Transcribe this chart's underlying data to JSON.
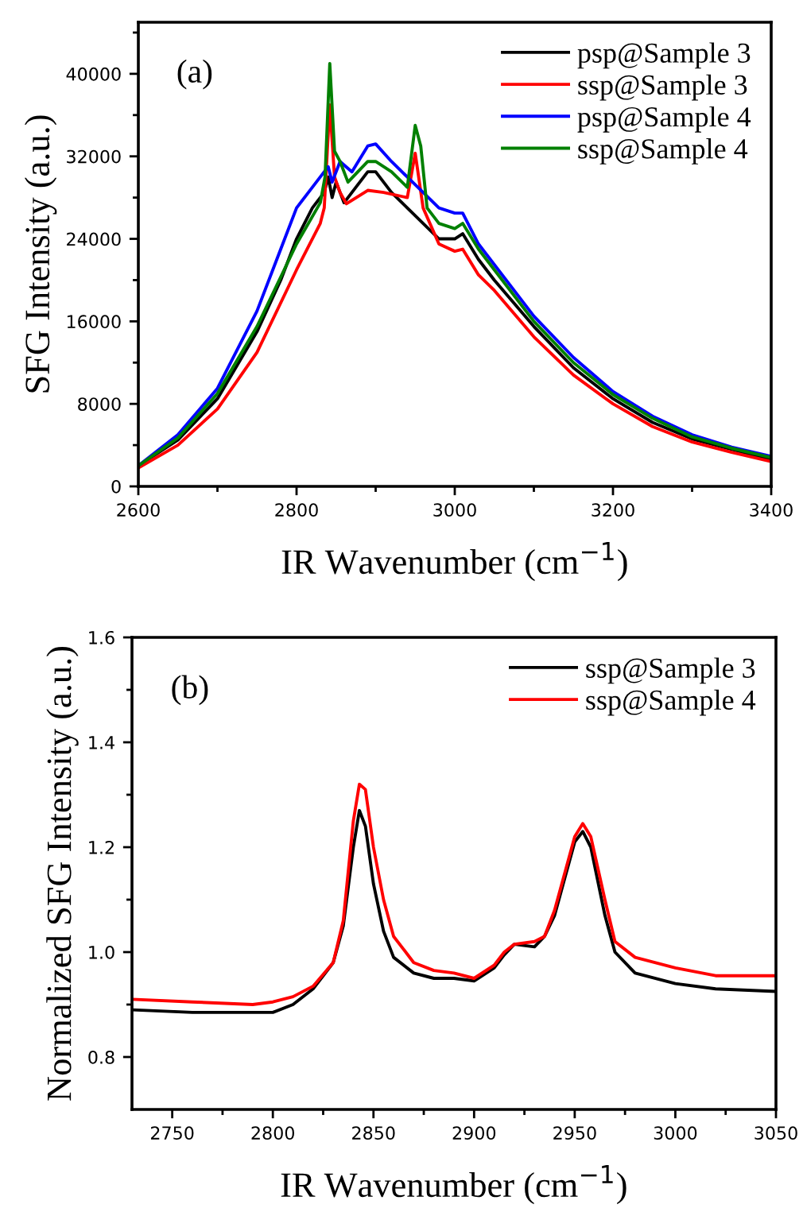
{
  "chart_data": [
    {
      "type": "line",
      "xlabel": "IR Wavenumber (cm$^{−1}$)",
      "ylabel": "SFG Intensity (a.u.)",
      "annotations": [
        "(a)"
      ],
      "legend": "top right",
      "line_style": "solid",
      "xlim": [
        2600,
        3400
      ],
      "xticks": [
        2600,
        {
          "value": 2700,
          "label": null
        },
        2800,
        {
          "value": 2900,
          "label": null
        },
        3000,
        {
          "value": 3100,
          "label": null
        },
        3200,
        {
          "value": 3300,
          "label": null
        },
        3400
      ],
      "ylim": [
        0,
        45000
      ],
      "yticks": [
        0,
        {
          "value": 4000,
          "label": null
        },
        8000,
        {
          "value": 12000,
          "label": null
        },
        16000,
        {
          "value": 20000,
          "label": null
        },
        24000,
        {
          "value": 28000,
          "label": null
        },
        32000,
        {
          "value": 36000,
          "label": null
        },
        40000,
        {
          "value": 44000,
          "label": null
        }
      ],
      "series": [
        {
          "name": "psp@Sample 3",
          "color": "#000000",
          "x": [
            2600,
            2650,
            2700,
            2750,
            2780,
            2800,
            2820,
            2835,
            2840,
            2845,
            2850,
            2860,
            2875,
            2890,
            2900,
            2920,
            2940,
            2960,
            2980,
            3000,
            3010,
            3030,
            3050,
            3100,
            3150,
            3200,
            3250,
            3300,
            3350,
            3400
          ],
          "values": [
            2000,
            4500,
            8500,
            15000,
            20000,
            24000,
            27000,
            28500,
            30000,
            28000,
            29500,
            27500,
            29000,
            30500,
            30500,
            28500,
            27000,
            25500,
            24000,
            24000,
            24500,
            22000,
            20000,
            15500,
            11500,
            8500,
            6200,
            4600,
            3600,
            2600
          ]
        },
        {
          "name": "ssp@Sample 3",
          "color": "#ff0000",
          "x": [
            2600,
            2650,
            2700,
            2750,
            2800,
            2830,
            2835,
            2842,
            2848,
            2855,
            2863,
            2890,
            2910,
            2940,
            2950,
            2960,
            2980,
            3000,
            3010,
            3030,
            3050,
            3100,
            3150,
            3200,
            3250,
            3300,
            3350,
            3400
          ],
          "values": [
            1800,
            4000,
            7500,
            13000,
            21000,
            25500,
            27000,
            37000,
            30000,
            28500,
            27400,
            28700,
            28500,
            28000,
            32300,
            27000,
            23500,
            22800,
            23000,
            20500,
            19000,
            14500,
            10800,
            8000,
            5800,
            4300,
            3300,
            2400
          ]
        },
        {
          "name": "psp@Sample 4",
          "color": "#0000ff",
          "x": [
            2600,
            2650,
            2700,
            2750,
            2780,
            2800,
            2820,
            2840,
            2845,
            2855,
            2870,
            2890,
            2900,
            2920,
            2940,
            2960,
            2980,
            3000,
            3010,
            3030,
            3050,
            3100,
            3150,
            3200,
            3250,
            3300,
            3350,
            3400
          ],
          "values": [
            2000,
            5000,
            9500,
            17000,
            23000,
            27000,
            29000,
            31000,
            29500,
            31500,
            30500,
            33000,
            33200,
            31500,
            30000,
            28500,
            27000,
            26500,
            26500,
            23500,
            21500,
            16500,
            12500,
            9200,
            6800,
            5000,
            3800,
            2900
          ]
        },
        {
          "name": "ssp@Sample 4",
          "color": "#008000",
          "x": [
            2600,
            2650,
            2700,
            2750,
            2800,
            2830,
            2836,
            2842,
            2848,
            2855,
            2865,
            2890,
            2900,
            2920,
            2940,
            2950,
            2957,
            2965,
            2980,
            3000,
            3010,
            3030,
            3050,
            3100,
            3150,
            3200,
            3250,
            3300,
            3350,
            3400
          ],
          "values": [
            2000,
            4700,
            9000,
            15500,
            23500,
            27500,
            30000,
            41000,
            32500,
            31500,
            29500,
            31500,
            31500,
            30500,
            29000,
            35000,
            33000,
            27000,
            25500,
            25000,
            25500,
            23000,
            21000,
            16000,
            12000,
            8900,
            6600,
            4800,
            3700,
            2800
          ]
        }
      ]
    },
    {
      "type": "line",
      "xlabel": "IR Wavenumber (cm$^{−1}$)",
      "ylabel": "Normalized SFG Intensity (a.u.)",
      "annotations": [
        "(b)"
      ],
      "legend": "top right",
      "line_style": "solid",
      "xlim": [
        2730,
        3050
      ],
      "xticks": [
        2750,
        {
          "value": 2775,
          "label": null
        },
        2800,
        {
          "value": 2825,
          "label": null
        },
        2850,
        {
          "value": 2875,
          "label": null
        },
        2900,
        {
          "value": 2925,
          "label": null
        },
        2950,
        {
          "value": 2975,
          "label": null
        },
        3000,
        {
          "value": 3025,
          "label": null
        },
        3050
      ],
      "ylim": [
        0.7,
        1.6
      ],
      "yticks": [
        0.8,
        {
          "value": 0.9,
          "label": null
        },
        {
          "value": 1.0,
          "label": "1.0"
        },
        {
          "value": 1.1,
          "label": null
        },
        1.2,
        {
          "value": 1.3,
          "label": null
        },
        1.4,
        {
          "value": 1.5,
          "label": null
        },
        1.6
      ],
      "series": [
        {
          "name": "ssp@Sample 3",
          "color": "#000000",
          "x": [
            2730,
            2760,
            2790,
            2800,
            2810,
            2820,
            2830,
            2835,
            2840,
            2843,
            2846,
            2850,
            2855,
            2860,
            2870,
            2880,
            2890,
            2900,
            2910,
            2915,
            2920,
            2930,
            2935,
            2940,
            2945,
            2950,
            2954,
            2958,
            2965,
            2970,
            2980,
            3000,
            3020,
            3050
          ],
          "values": [
            0.89,
            0.885,
            0.885,
            0.885,
            0.9,
            0.93,
            0.98,
            1.05,
            1.2,
            1.27,
            1.24,
            1.13,
            1.04,
            0.99,
            0.96,
            0.95,
            0.95,
            0.945,
            0.97,
            0.995,
            1.015,
            1.01,
            1.03,
            1.07,
            1.14,
            1.21,
            1.23,
            1.2,
            1.07,
            1.0,
            0.96,
            0.94,
            0.93,
            0.925
          ]
        },
        {
          "name": "ssp@Sample 4",
          "color": "#ff0000",
          "x": [
            2730,
            2760,
            2790,
            2800,
            2810,
            2820,
            2830,
            2835,
            2840,
            2843,
            2846,
            2850,
            2855,
            2860,
            2870,
            2880,
            2890,
            2900,
            2910,
            2915,
            2920,
            2930,
            2935,
            2940,
            2945,
            2950,
            2954,
            2958,
            2965,
            2970,
            2980,
            3000,
            3020,
            3050
          ],
          "values": [
            0.91,
            0.905,
            0.9,
            0.905,
            0.915,
            0.935,
            0.98,
            1.06,
            1.25,
            1.32,
            1.31,
            1.2,
            1.1,
            1.03,
            0.98,
            0.965,
            0.96,
            0.95,
            0.975,
            1.0,
            1.015,
            1.02,
            1.03,
            1.08,
            1.15,
            1.22,
            1.245,
            1.22,
            1.1,
            1.02,
            0.99,
            0.97,
            0.955,
            0.955
          ]
        }
      ]
    }
  ]
}
